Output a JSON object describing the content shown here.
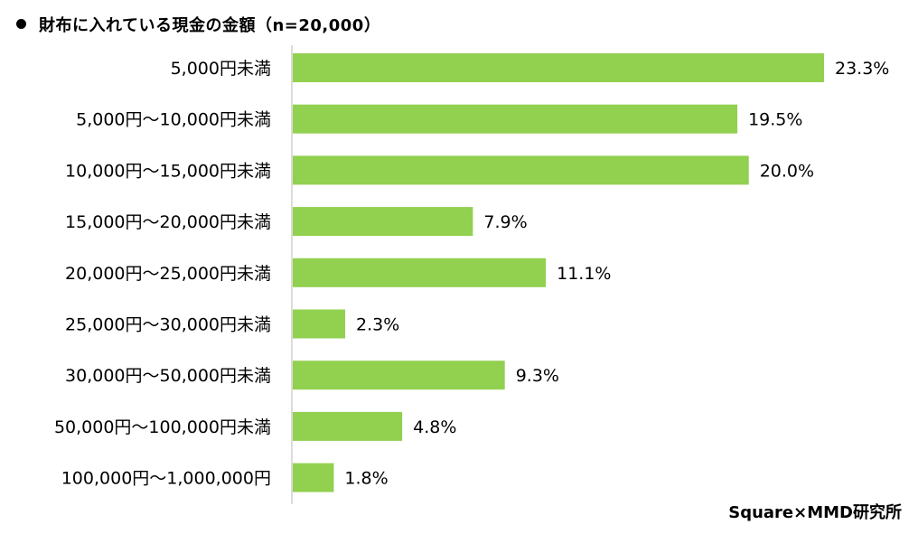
{
  "title": "財布に入れている現金の金額（n=20,000）",
  "source": "Square×MMD研究所",
  "colors": {
    "bar": "#92d050",
    "axis": "#d0d0d0"
  },
  "chart_data": {
    "type": "bar",
    "orientation": "horizontal",
    "title": "財布に入れている現金の金額（n=20,000）",
    "categories": [
      "5,000円未満",
      "5,000円～10,000円未満",
      "10,000円～15,000円未満",
      "15,000円～20,000円未満",
      "20,000円～25,000円未満",
      "25,000円～30,000円未満",
      "30,000円～50,000円未満",
      "50,000円～100,000円未満",
      "100,000円～1,000,000円"
    ],
    "values": [
      23.3,
      19.5,
      20.0,
      7.9,
      11.1,
      2.3,
      9.3,
      4.8,
      1.8
    ],
    "value_labels": [
      "23.3%",
      "19.5%",
      "20.0%",
      "7.9%",
      "11.1%",
      "2.3%",
      "9.3%",
      "4.8%",
      "1.8%"
    ],
    "unit": "%",
    "xlim": [
      0,
      23.3
    ],
    "grid": false,
    "legend": "none"
  }
}
